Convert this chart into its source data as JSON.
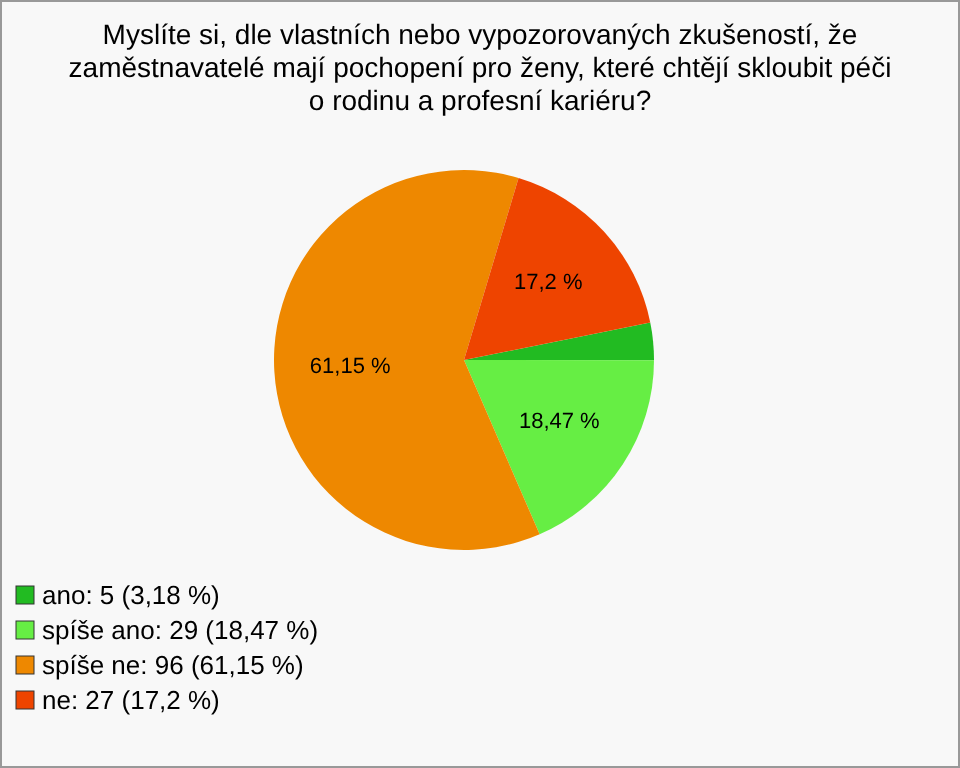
{
  "chart_data": {
    "type": "pie",
    "title": "Myslíte si, dle vlastních nebo vypozorovaných zkušeností, že zaměstnavatelé mají pochopení pro ženy, které chtějí skloubit péči o rodinu a profesní kariéru?",
    "categories": [
      "ano: 5 (3,18 %)",
      "spíše ano: 29 (18,47 %)",
      "spíše ne: 96 (61,15 %)",
      "ne: 27 (17,2 %)"
    ],
    "values": [
      3.18,
      18.47,
      61.15,
      17.2
    ],
    "colors": [
      "#22bb22",
      "#66ee44",
      "#ee8800",
      "#ee4400"
    ],
    "value_labels": [
      null,
      "18,47 %",
      "61,15 %",
      "17,2 %"
    ],
    "legend": "bottom left"
  }
}
